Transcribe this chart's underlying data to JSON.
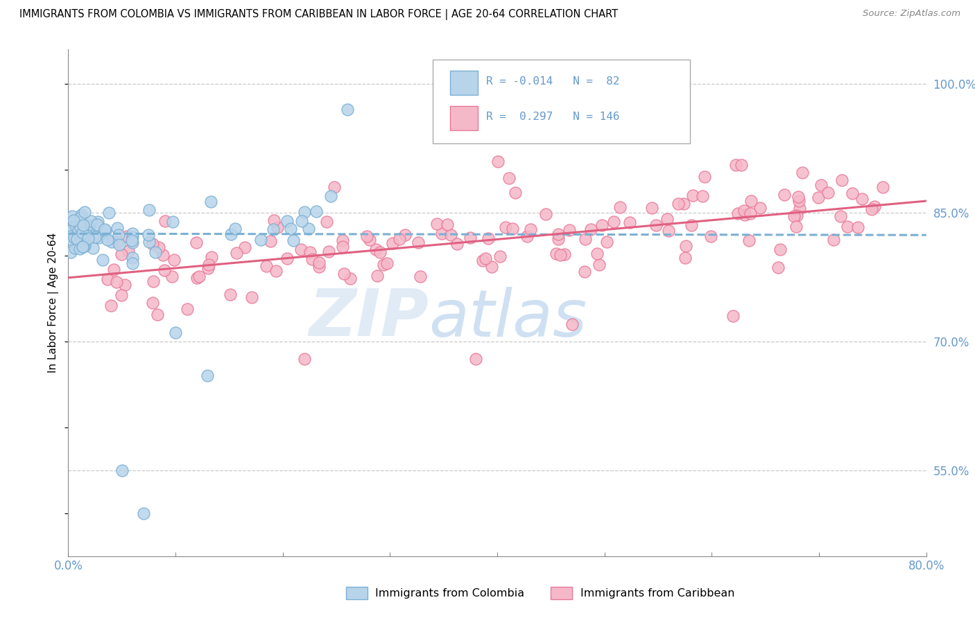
{
  "title": "IMMIGRANTS FROM COLOMBIA VS IMMIGRANTS FROM CARIBBEAN IN LABOR FORCE | AGE 20-64 CORRELATION CHART",
  "source": "Source: ZipAtlas.com",
  "ylabel": "In Labor Force | Age 20-64",
  "ytick_labels": [
    "100.0%",
    "85.0%",
    "70.0%",
    "55.0%"
  ],
  "ytick_values": [
    1.0,
    0.85,
    0.7,
    0.55
  ],
  "xlim": [
    0.0,
    0.8
  ],
  "ylim": [
    0.45,
    1.04
  ],
  "watermark_zip": "ZIP",
  "watermark_atlas": "atlas",
  "legend_R1": "-0.014",
  "legend_N1": "82",
  "legend_R2": "0.297",
  "legend_N2": "146",
  "color_colombia_face": "#b8d4ea",
  "color_colombia_edge": "#7aafd4",
  "color_caribbean_face": "#f5b8c8",
  "color_caribbean_edge": "#e87898",
  "color_line_colombia": "#7aafd4",
  "color_line_caribbean": "#e06080",
  "color_ticks": "#6699cc",
  "background_color": "#ffffff",
  "grid_color": "#c8c8c8",
  "bottom_legend_colombia": "Immigrants from Colombia",
  "bottom_legend_caribbean": "Immigrants from Caribbean"
}
